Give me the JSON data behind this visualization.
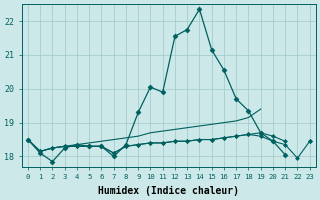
{
  "xlabel": "Humidex (Indice chaleur)",
  "bg_color": "#cce8e8",
  "grid_color": "#9dc8c8",
  "line_color": "#006060",
  "x": [
    0,
    1,
    2,
    3,
    4,
    5,
    6,
    7,
    8,
    9,
    10,
    11,
    12,
    13,
    14,
    15,
    16,
    17,
    18,
    19,
    20,
    21,
    22,
    23
  ],
  "line_peak": [
    18.5,
    18.1,
    17.85,
    18.25,
    18.35,
    18.3,
    18.3,
    18.0,
    18.35,
    19.3,
    20.05,
    19.9,
    21.55,
    21.75,
    22.35,
    21.15,
    20.55,
    19.7,
    19.35,
    18.7,
    18.45,
    18.05,
    null,
    null
  ],
  "line_rise": [
    18.5,
    18.15,
    18.25,
    18.3,
    18.35,
    18.4,
    18.45,
    18.5,
    18.55,
    18.6,
    18.7,
    18.75,
    18.8,
    18.85,
    18.9,
    18.95,
    19.0,
    19.05,
    19.15,
    19.4,
    null,
    null,
    null,
    null
  ],
  "line_flat1": [
    18.5,
    18.15,
    18.25,
    18.3,
    18.3,
    18.3,
    18.3,
    18.1,
    18.3,
    18.35,
    18.4,
    18.4,
    18.45,
    18.45,
    18.5,
    18.5,
    18.55,
    18.6,
    18.65,
    18.7,
    18.6,
    18.45,
    null,
    18.45
  ],
  "line_flat2": [
    18.5,
    18.15,
    18.25,
    18.3,
    18.3,
    18.3,
    18.3,
    18.1,
    18.3,
    18.35,
    18.4,
    18.4,
    18.45,
    18.45,
    18.5,
    18.5,
    18.55,
    18.6,
    18.65,
    18.6,
    18.45,
    18.35,
    17.95,
    18.45
  ],
  "ylim": [
    17.7,
    22.5
  ],
  "yticks": [
    18,
    19,
    20,
    21,
    22
  ],
  "xticks": [
    0,
    1,
    2,
    3,
    4,
    5,
    6,
    7,
    8,
    9,
    10,
    11,
    12,
    13,
    14,
    15,
    16,
    17,
    18,
    19,
    20,
    21,
    22,
    23
  ]
}
